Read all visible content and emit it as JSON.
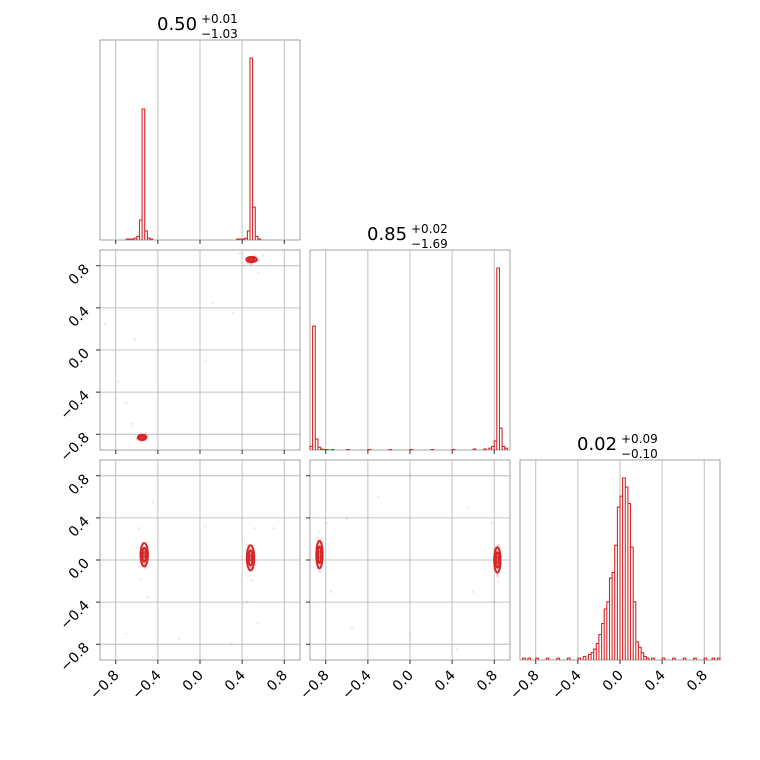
{
  "chart_data": {
    "type": "corner",
    "parameters": 3,
    "range": [
      -0.95,
      0.95
    ],
    "ticks": [
      -0.8,
      -0.4,
      0.0,
      0.4,
      0.8
    ],
    "tick_labels": [
      "−0.8",
      "−0.4",
      "0.0",
      "0.4",
      "0.8"
    ],
    "grid": true,
    "color": "#d62728",
    "titles": [
      {
        "value": "0.50",
        "plus": "+0.01",
        "minus": "−1.03"
      },
      {
        "value": "0.85",
        "plus": "+0.02",
        "minus": "−1.69"
      },
      {
        "value": "0.02",
        "plus": "+0.09",
        "minus": "−0.10"
      }
    ],
    "histograms": [
      {
        "param": 0,
        "bin_width": 0.025,
        "bins": [
          {
            "x": -0.7,
            "y": 0.005
          },
          {
            "x": -0.675,
            "y": 0.005
          },
          {
            "x": -0.65,
            "y": 0.005
          },
          {
            "x": -0.625,
            "y": 0.01
          },
          {
            "x": -0.6,
            "y": 0.02
          },
          {
            "x": -0.575,
            "y": 0.11
          },
          {
            "x": -0.55,
            "y": 0.72
          },
          {
            "x": -0.525,
            "y": 0.05
          },
          {
            "x": -0.5,
            "y": 0.01
          },
          {
            "x": -0.475,
            "y": 0.005
          },
          {
            "x": 0.35,
            "y": 0.005
          },
          {
            "x": 0.375,
            "y": 0.005
          },
          {
            "x": 0.4,
            "y": 0.005
          },
          {
            "x": 0.425,
            "y": 0.01
          },
          {
            "x": 0.45,
            "y": 0.05
          },
          {
            "x": 0.475,
            "y": 1.0
          },
          {
            "x": 0.5,
            "y": 0.18
          },
          {
            "x": 0.525,
            "y": 0.02
          },
          {
            "x": 0.55,
            "y": 0.005
          }
        ]
      },
      {
        "param": 1,
        "bin_width": 0.025,
        "bins": [
          {
            "x": -0.95,
            "y": 0.02
          },
          {
            "x": -0.925,
            "y": 0.68
          },
          {
            "x": -0.9,
            "y": 0.06
          },
          {
            "x": -0.875,
            "y": 0.015
          },
          {
            "x": -0.85,
            "y": 0.005
          },
          {
            "x": -0.825,
            "y": 0.003
          },
          {
            "x": -0.8,
            "y": 0.003
          },
          {
            "x": -0.75,
            "y": 0.002
          },
          {
            "x": -0.6,
            "y": 0.002
          },
          {
            "x": -0.4,
            "y": 0.002
          },
          {
            "x": -0.2,
            "y": 0.002
          },
          {
            "x": 0.0,
            "y": 0.002
          },
          {
            "x": 0.2,
            "y": 0.002
          },
          {
            "x": 0.4,
            "y": 0.003
          },
          {
            "x": 0.6,
            "y": 0.005
          },
          {
            "x": 0.7,
            "y": 0.005
          },
          {
            "x": 0.75,
            "y": 0.01
          },
          {
            "x": 0.775,
            "y": 0.02
          },
          {
            "x": 0.8,
            "y": 0.05
          },
          {
            "x": 0.825,
            "y": 1.0
          },
          {
            "x": 0.85,
            "y": 0.12
          },
          {
            "x": 0.875,
            "y": 0.02
          },
          {
            "x": 0.9,
            "y": 0.01
          }
        ]
      },
      {
        "param": 2,
        "bin_width": 0.025,
        "bins": [
          {
            "x": -0.925,
            "y": 0.01
          },
          {
            "x": -0.875,
            "y": 0.01
          },
          {
            "x": -0.8,
            "y": 0.01
          },
          {
            "x": -0.7,
            "y": 0.01
          },
          {
            "x": -0.6,
            "y": 0.01
          },
          {
            "x": -0.5,
            "y": 0.01
          },
          {
            "x": -0.4,
            "y": 0.01
          },
          {
            "x": -0.35,
            "y": 0.02
          },
          {
            "x": -0.3,
            "y": 0.03
          },
          {
            "x": -0.275,
            "y": 0.04
          },
          {
            "x": -0.25,
            "y": 0.06
          },
          {
            "x": -0.225,
            "y": 0.09
          },
          {
            "x": -0.2,
            "y": 0.14
          },
          {
            "x": -0.175,
            "y": 0.2
          },
          {
            "x": -0.15,
            "y": 0.28
          },
          {
            "x": -0.125,
            "y": 0.32
          },
          {
            "x": -0.1,
            "y": 0.45
          },
          {
            "x": -0.075,
            "y": 0.48
          },
          {
            "x": -0.05,
            "y": 0.63
          },
          {
            "x": -0.025,
            "y": 0.84
          },
          {
            "x": 0.0,
            "y": 0.9
          },
          {
            "x": 0.025,
            "y": 1.0
          },
          {
            "x": 0.05,
            "y": 0.95
          },
          {
            "x": 0.075,
            "y": 0.86
          },
          {
            "x": 0.1,
            "y": 0.62
          },
          {
            "x": 0.125,
            "y": 0.32
          },
          {
            "x": 0.15,
            "y": 0.1
          },
          {
            "x": 0.175,
            "y": 0.07
          },
          {
            "x": 0.2,
            "y": 0.04
          },
          {
            "x": 0.225,
            "y": 0.02
          },
          {
            "x": 0.25,
            "y": 0.01
          },
          {
            "x": 0.3,
            "y": 0.01
          },
          {
            "x": 0.4,
            "y": 0.01
          },
          {
            "x": 0.5,
            "y": 0.01
          },
          {
            "x": 0.6,
            "y": 0.01
          },
          {
            "x": 0.7,
            "y": 0.01
          },
          {
            "x": 0.8,
            "y": 0.01
          },
          {
            "x": 0.875,
            "y": 0.01
          },
          {
            "x": 0.925,
            "y": 0.01
          }
        ]
      }
    ],
    "pairs": [
      {
        "x_param": 0,
        "y_param": 1,
        "modes": [
          {
            "x": 0.49,
            "y": 0.86,
            "rx": 0.05,
            "ry": 0.025,
            "points": 45
          },
          {
            "x": -0.55,
            "y": -0.83,
            "rx": 0.04,
            "ry": 0.025,
            "points": 45
          }
        ],
        "scatter": [
          {
            "x": 0.38,
            "y": 0.92
          },
          {
            "x": 0.42,
            "y": 0.8
          },
          {
            "x": 0.55,
            "y": 0.73
          },
          {
            "x": 0.31,
            "y": 0.35
          },
          {
            "x": 0.12,
            "y": 0.45
          },
          {
            "x": -0.7,
            "y": -0.5
          },
          {
            "x": -0.9,
            "y": 0.25
          },
          {
            "x": -0.78,
            "y": -0.3
          },
          {
            "x": -0.65,
            "y": -0.7
          },
          {
            "x": -0.62,
            "y": 0.1
          },
          {
            "x": 0.6,
            "y": 0.9
          },
          {
            "x": 0.05,
            "y": -0.1
          }
        ]
      },
      {
        "x_param": 0,
        "y_param": 2,
        "modes": [
          {
            "x": -0.53,
            "y": 0.05,
            "rx": 0.035,
            "ry": 0.11,
            "points": 60
          },
          {
            "x": 0.48,
            "y": 0.02,
            "rx": 0.035,
            "ry": 0.12,
            "points": 60
          }
        ],
        "scatter": [
          {
            "x": -0.56,
            "y": -0.18
          },
          {
            "x": -0.58,
            "y": 0.3
          },
          {
            "x": -0.5,
            "y": -0.35
          },
          {
            "x": 0.52,
            "y": 0.3
          },
          {
            "x": 0.45,
            "y": -0.4
          },
          {
            "x": 0.55,
            "y": -0.6
          },
          {
            "x": -0.7,
            "y": -0.7
          },
          {
            "x": 0.05,
            "y": 0.32
          },
          {
            "x": 0.3,
            "y": -0.8
          },
          {
            "x": -0.2,
            "y": -0.75
          },
          {
            "x": 0.7,
            "y": 0.3
          },
          {
            "x": -0.45,
            "y": 0.55
          }
        ]
      },
      {
        "x_param": 1,
        "y_param": 2,
        "modes": [
          {
            "x": -0.86,
            "y": 0.05,
            "rx": 0.03,
            "ry": 0.13,
            "points": 60
          },
          {
            "x": 0.83,
            "y": 0.0,
            "rx": 0.03,
            "ry": 0.12,
            "points": 60
          }
        ],
        "scatter": [
          {
            "x": -0.8,
            "y": 0.35
          },
          {
            "x": -0.75,
            "y": -0.3
          },
          {
            "x": -0.55,
            "y": -0.65
          },
          {
            "x": 0.0,
            "y": 0.8
          },
          {
            "x": 0.0,
            "y": -0.7
          },
          {
            "x": 0.78,
            "y": 0.35
          },
          {
            "x": 0.8,
            "y": -0.4
          },
          {
            "x": 0.55,
            "y": 0.5
          },
          {
            "x": 0.6,
            "y": -0.3
          },
          {
            "x": -0.3,
            "y": 0.6
          },
          {
            "x": 0.45,
            "y": -0.85
          },
          {
            "x": -0.6,
            "y": 0.4
          }
        ]
      }
    ]
  }
}
